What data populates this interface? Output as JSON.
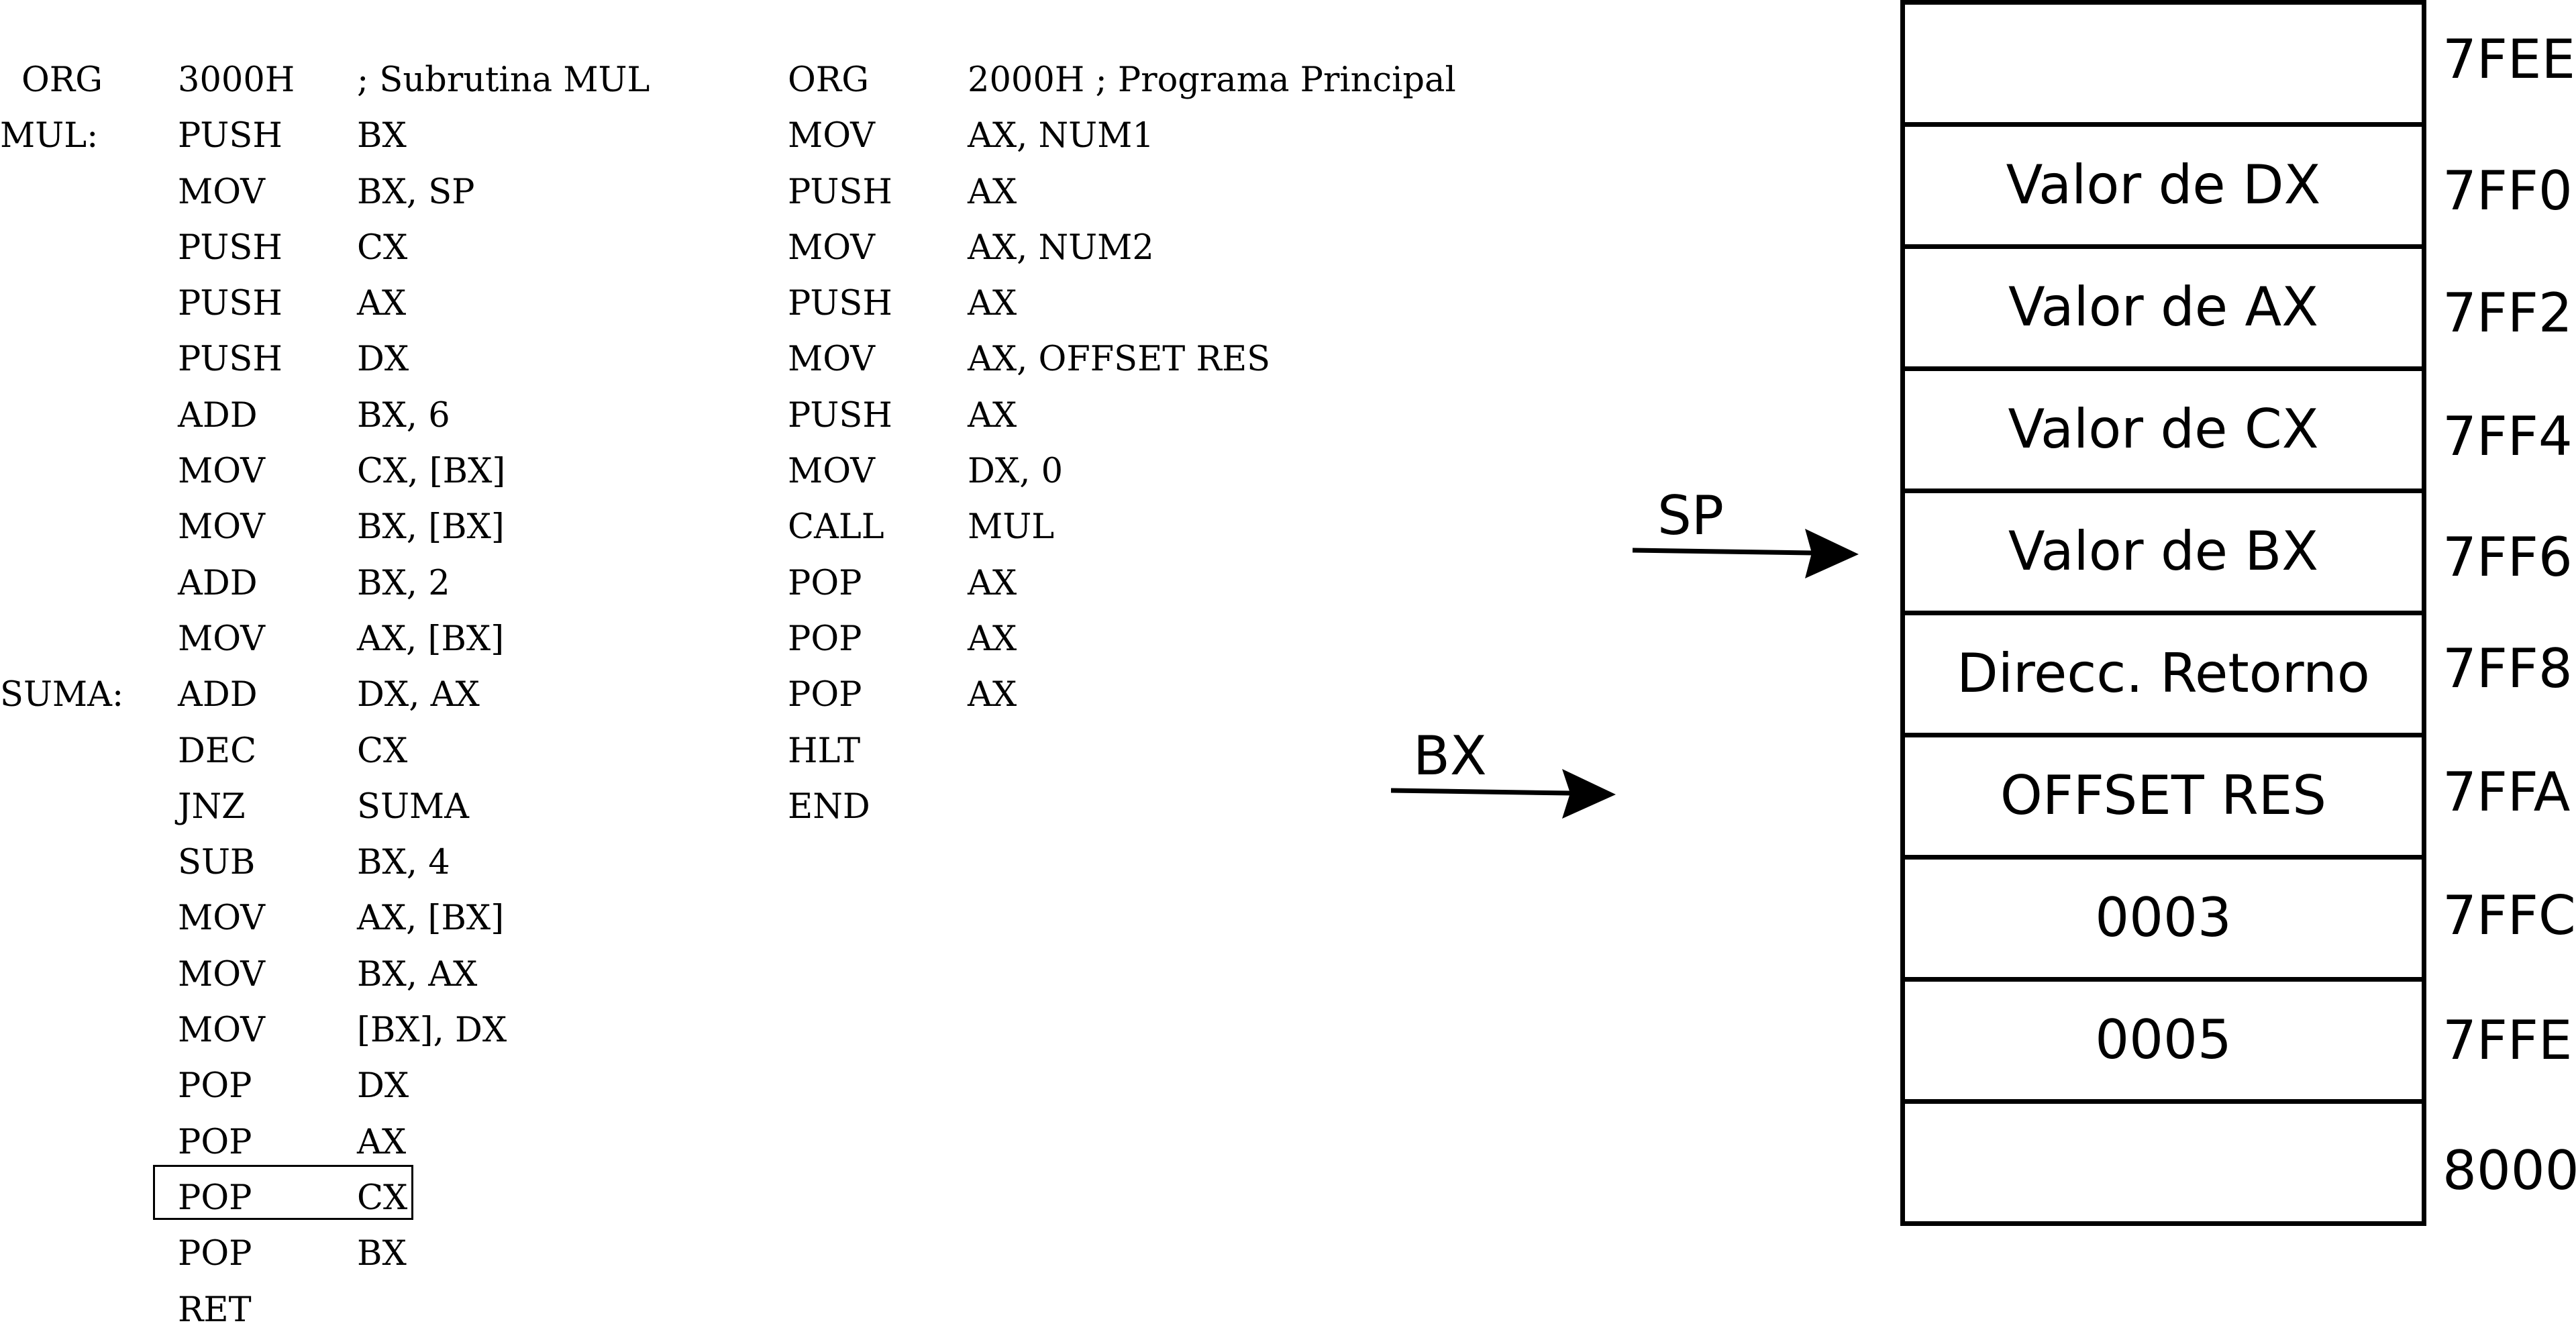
{
  "subroutine": {
    "lines": [
      {
        "label": "ORG",
        "op": "3000H",
        "args": "; Subrutina MUL"
      },
      {
        "label": "MUL:",
        "op": "PUSH",
        "args": "BX"
      },
      {
        "label": "",
        "op": "MOV",
        "args": "BX, SP"
      },
      {
        "label": "",
        "op": "PUSH",
        "args": "CX"
      },
      {
        "label": "",
        "op": "PUSH",
        "args": "AX"
      },
      {
        "label": "",
        "op": "PUSH",
        "args": "DX"
      },
      {
        "label": "",
        "op": "ADD",
        "args": "BX, 6"
      },
      {
        "label": "",
        "op": "MOV",
        "args": "CX, [BX]"
      },
      {
        "label": "",
        "op": "MOV",
        "args": "BX, [BX]"
      },
      {
        "label": "",
        "op": "ADD",
        "args": "BX, 2"
      },
      {
        "label": "",
        "op": "MOV",
        "args": "AX, [BX]"
      },
      {
        "label": "SUMA:",
        "op": "ADD",
        "args": "DX, AX"
      },
      {
        "label": "",
        "op": "DEC",
        "args": "CX"
      },
      {
        "label": "",
        "op": "JNZ",
        "args": "SUMA"
      },
      {
        "label": "",
        "op": "SUB",
        "args": "BX, 4"
      },
      {
        "label": "",
        "op": "MOV",
        "args": "AX, [BX]"
      },
      {
        "label": "",
        "op": "MOV",
        "args": "BX, AX"
      },
      {
        "label": "",
        "op": "MOV",
        "args": "[BX], DX"
      },
      {
        "label": "",
        "op": "POP",
        "args": "DX"
      },
      {
        "label": "",
        "op": "POP",
        "args": "AX"
      },
      {
        "label": "",
        "op": "POP",
        "args": "CX"
      },
      {
        "label": "",
        "op": "POP",
        "args": "BX"
      },
      {
        "label": "",
        "op": "RET",
        "args": ""
      }
    ]
  },
  "main_program": {
    "lines": [
      {
        "op": "ORG",
        "args": "2000H ; Programa Principal"
      },
      {
        "op": "MOV",
        "args": "AX, NUM1"
      },
      {
        "op": "PUSH",
        "args": "AX"
      },
      {
        "op": "MOV",
        "args": "AX, NUM2"
      },
      {
        "op": "PUSH",
        "args": "AX"
      },
      {
        "op": "MOV",
        "args": "AX, OFFSET RES"
      },
      {
        "op": "PUSH",
        "args": "AX"
      },
      {
        "op": "MOV",
        "args": "DX, 0"
      },
      {
        "op": "CALL",
        "args": "MUL"
      },
      {
        "op": "POP",
        "args": "AX"
      },
      {
        "op": "POP",
        "args": "AX"
      },
      {
        "op": "POP",
        "args": "AX"
      },
      {
        "op": "HLT",
        "args": ""
      },
      {
        "op": "END",
        "args": ""
      }
    ]
  },
  "stack": {
    "cells": [
      {
        "content": "",
        "address": "7FEE"
      },
      {
        "content": "Valor de DX",
        "address": "7FF0"
      },
      {
        "content": "Valor de AX",
        "address": "7FF2"
      },
      {
        "content": "Valor de CX",
        "address": "7FF4"
      },
      {
        "content": "Valor de BX",
        "address": "7FF6"
      },
      {
        "content": "Direcc. Retorno",
        "address": "7FF8"
      },
      {
        "content": "OFFSET RES",
        "address": "7FFA"
      },
      {
        "content": "0003",
        "address": "7FFC"
      },
      {
        "content": "0005",
        "address": "7FFE"
      },
      {
        "content": "",
        "address": "8000"
      }
    ]
  },
  "pointers": {
    "sp_label": "SP",
    "bx_label": "BX"
  }
}
